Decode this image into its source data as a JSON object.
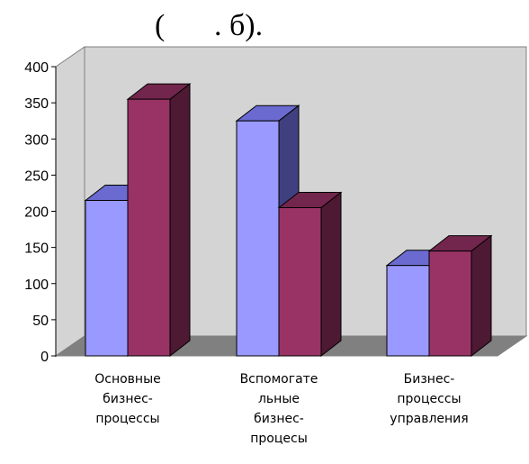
{
  "figure_caption": {
    "open_paren": "(",
    "text_after_gap": ". б)."
  },
  "chart_data": {
    "type": "bar",
    "variant": "3d-clustered-column",
    "categories": [
      [
        "Основные",
        "бизнес-",
        "процессы"
      ],
      [
        "Вспомогате",
        "льные",
        "бизнес-",
        "процесы"
      ],
      [
        "Бизнес-",
        "процессы",
        "управления"
      ]
    ],
    "series": [
      {
        "values": [
          215,
          325,
          125
        ],
        "front_color": "#9999ff",
        "side_color": "#404080",
        "top_color": "#6a6ad0"
      },
      {
        "values": [
          355,
          205,
          145
        ],
        "front_color": "#993366",
        "side_color": "#4d1933",
        "top_color": "#73264d"
      }
    ],
    "ylim": [
      0,
      400
    ],
    "yticks": [
      0,
      50,
      100,
      150,
      200,
      250,
      300,
      350,
      400
    ],
    "grid": false,
    "legend": "none",
    "colors": {
      "back_wall": "#d4d4d4",
      "floor": "#808080",
      "wall_edge": "#808080"
    }
  }
}
